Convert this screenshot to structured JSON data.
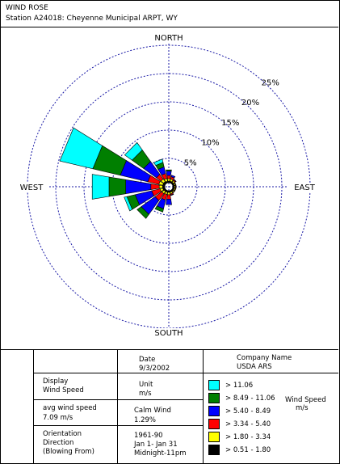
{
  "header": {
    "title": "WIND ROSE",
    "station": "Station A24018: Cheyenne Municipal ARPT, WY"
  },
  "chart_data": {
    "type": "wind_rose",
    "directions": [
      "N",
      "NNE",
      "NE",
      "ENE",
      "E",
      "ESE",
      "SE",
      "SSE",
      "S",
      "SSW",
      "SW",
      "WSW",
      "W",
      "WNW",
      "NW",
      "NNW"
    ],
    "ring_labels": [
      "5%",
      "10%",
      "15%",
      "20%",
      "25%"
    ],
    "ring_values": [
      5,
      10,
      15,
      20,
      25
    ],
    "compass_labels": {
      "north": "NORTH",
      "south": "SOUTH",
      "east": "EAST",
      "west": "WEST"
    },
    "bins": [
      {
        "label": "> 11.06",
        "color": "#00ffff"
      },
      {
        "label": "> 8.49 - 11.06",
        "color": "#007f00"
      },
      {
        "label": "> 5.40 - 8.49",
        "color": "#0000ff"
      },
      {
        "label": "> 3.34 - 5.40",
        "color": "#ff0000"
      },
      {
        "label": "> 1.80 - 3.34",
        "color": "#ffff00"
      },
      {
        "label": "> 0.51 - 1.80",
        "color": "#000000"
      }
    ],
    "frequencies": {
      "N": [
        0.0,
        0.2,
        0.8,
        0.6,
        0.4,
        0.3
      ],
      "NNE": [
        0.0,
        0.0,
        0.3,
        0.4,
        0.4,
        0.3
      ],
      "NE": [
        0.0,
        0.0,
        0.1,
        0.2,
        0.3,
        0.3
      ],
      "ENE": [
        0.0,
        0.0,
        0.0,
        0.1,
        0.2,
        0.3
      ],
      "E": [
        0.0,
        0.0,
        0.0,
        0.1,
        0.2,
        0.3
      ],
      "ESE": [
        0.0,
        0.0,
        0.0,
        0.1,
        0.2,
        0.3
      ],
      "SE": [
        0.0,
        0.0,
        0.0,
        0.1,
        0.2,
        0.3
      ],
      "SSE": [
        0.0,
        0.0,
        0.1,
        0.2,
        0.3,
        0.3
      ],
      "S": [
        0.0,
        0.0,
        1.0,
        0.8,
        0.4,
        0.3
      ],
      "SSW": [
        0.0,
        0.6,
        1.6,
        1.0,
        0.4,
        0.3
      ],
      "SW": [
        0.0,
        0.9,
        3.0,
        1.5,
        0.5,
        0.3
      ],
      "WSW": [
        0.5,
        1.5,
        3.0,
        1.5,
        0.5,
        0.4
      ],
      "W": [
        3.0,
        3.0,
        4.5,
        1.5,
        0.6,
        0.4
      ],
      "WNW": [
        6.0,
        5.0,
        5.0,
        2.0,
        0.7,
        0.4
      ],
      "NW": [
        1.6,
        2.5,
        2.8,
        1.0,
        0.6,
        0.4
      ],
      "NNW": [
        0.6,
        0.8,
        1.2,
        0.9,
        0.5,
        0.3
      ]
    }
  },
  "table": {
    "date_label": "Date",
    "date_value": "9/3/2002",
    "company_label": "Company Name",
    "company_value": "USDA ARS",
    "display_label_1": "Display",
    "display_label_2": "Wind Speed",
    "unit_label": "Unit",
    "unit_value": "m/s",
    "avg_label": "avg wind speed",
    "avg_value": "7.09 m/s",
    "calm_label": "Calm Wind",
    "calm_value": "1.29%",
    "orient_label_1": "Orientation",
    "orient_label_2": "Direction",
    "orient_label_3": "(Blowing From)",
    "period_1": "1961-90",
    "period_2": "Jan 1- Jan 31",
    "period_3": "Midnight-11pm",
    "legend_title_1": "Wind Speed",
    "legend_title_2": "m/s"
  }
}
